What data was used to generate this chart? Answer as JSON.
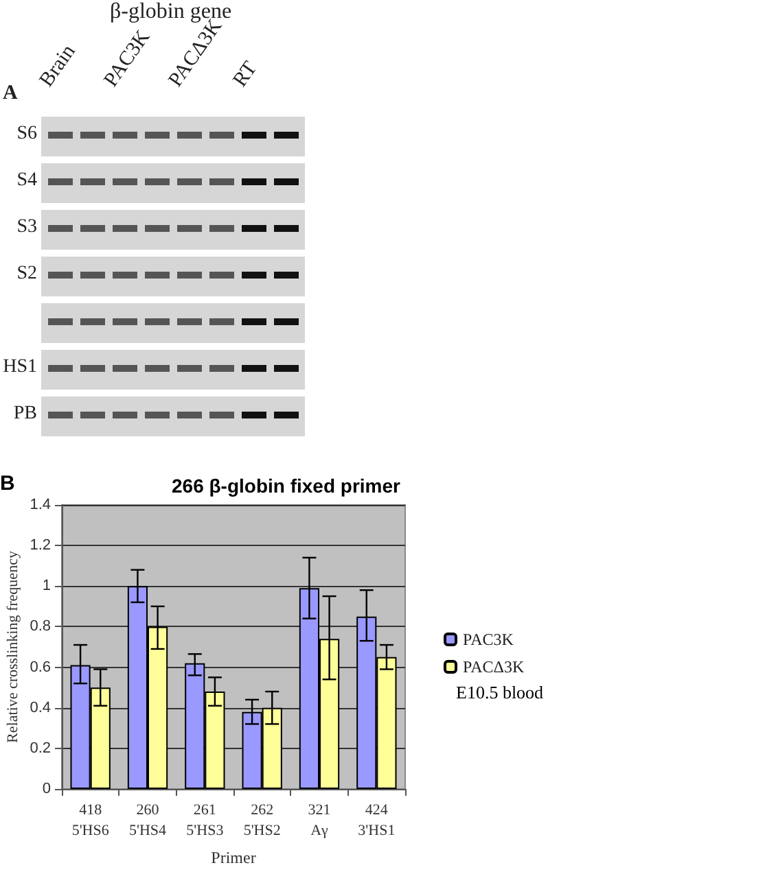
{
  "chart_data": [
    {
      "type": "other",
      "title": "β-globin gene",
      "annotations": [
        "A",
        "Brain",
        "PAC3K",
        "PACΔ3K",
        "RT",
        "S6",
        "S4",
        "S3",
        "S2",
        "HS1",
        "PB"
      ]
    },
    {
      "type": "bar",
      "title": "266 β-globin fixed primer",
      "xlabel": "Primer",
      "ylabel": "Relative crosslinking frequency",
      "categories": [
        "418\n5'HS6",
        "260\n5'HS4",
        "261\n5'HS3",
        "262\n5'HS2",
        "321\nAγ",
        "424\n3'HS1"
      ],
      "series": [
        {
          "name": "PAC3K",
          "color": "#9999ff",
          "values": [
            0.61,
            1.0,
            0.62,
            0.38,
            0.99,
            0.85
          ],
          "errors": [
            [
              0.52,
              0.71
            ],
            [
              0.92,
              1.08
            ],
            [
              0.56,
              0.665
            ],
            [
              0.32,
              0.44
            ],
            [
              0.84,
              1.14
            ],
            [
              0.73,
              0.98
            ]
          ]
        },
        {
          "name": "PACΔ3K",
          "color": "#ffff99",
          "values": [
            0.5,
            0.8,
            0.48,
            0.4,
            0.74,
            0.65
          ],
          "errors": [
            [
              0.41,
              0.59
            ],
            [
              0.69,
              0.9
            ],
            [
              0.41,
              0.55
            ],
            [
              0.32,
              0.48
            ],
            [
              0.54,
              0.95
            ],
            [
              0.59,
              0.71
            ]
          ]
        }
      ],
      "ylim": [
        0,
        1.4
      ],
      "yticks": [
        0,
        0.2,
        0.4,
        0.6,
        0.8,
        1,
        1.2,
        1.4
      ],
      "grid": "y",
      "legend": "right",
      "annotations": [
        "B",
        "E10.5 blood"
      ]
    }
  ]
}
